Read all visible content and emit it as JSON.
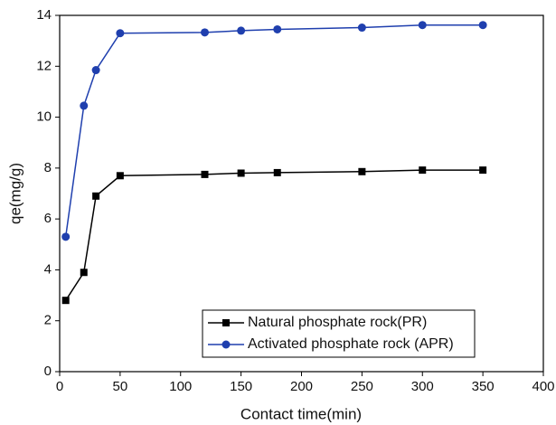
{
  "chart_data": {
    "type": "line",
    "x": [
      5,
      20,
      30,
      50,
      120,
      150,
      180,
      250,
      300,
      350
    ],
    "series": [
      {
        "name": "Natural phosphate rock(PR)",
        "color": "#000000",
        "marker": "square",
        "values": [
          2.8,
          3.9,
          6.9,
          7.7,
          7.75,
          7.8,
          7.82,
          7.86,
          7.92,
          7.92
        ]
      },
      {
        "name": "Activated phosphate rock (APR)",
        "color": "#1f3fae",
        "marker": "circle",
        "values": [
          5.3,
          10.45,
          11.85,
          13.3,
          13.33,
          13.4,
          13.45,
          13.52,
          13.62,
          13.62
        ]
      }
    ],
    "xlabel": "Contact time(min)",
    "ylabel": "qe(mg/g)",
    "xlim": [
      0,
      400
    ],
    "xticks": [
      0,
      50,
      100,
      150,
      200,
      250,
      300,
      350,
      400
    ],
    "ylim": [
      0,
      14
    ],
    "yticks": [
      0,
      2,
      4,
      6,
      8,
      10,
      12,
      14
    ],
    "legend": "lower right"
  }
}
